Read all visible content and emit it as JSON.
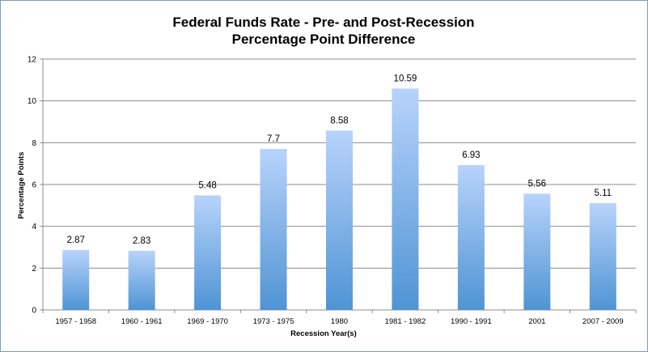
{
  "chart_data": {
    "type": "bar",
    "title": "Federal Funds Rate - Pre- and Post-Recession",
    "subtitle": "Percentage Point Difference",
    "xlabel": "Recession Year(s)",
    "ylabel": "Percentage Points",
    "categories": [
      "1957 - 1958",
      "1960 - 1961",
      "1969 - 1970",
      "1973 - 1975",
      "1980",
      "1981 - 1982",
      "1990 - 1991",
      "2001",
      "2007 - 2009"
    ],
    "values": [
      2.87,
      2.83,
      5.48,
      7.7,
      8.58,
      10.59,
      6.93,
      5.56,
      5.11
    ],
    "data_labels": [
      "2.87",
      "2.83",
      "5.48",
      "7.7",
      "8.58",
      "10.59",
      "6.93",
      "5.56",
      "5.11"
    ],
    "ylim": [
      0,
      12
    ],
    "yticks": [
      0,
      2,
      4,
      6,
      8,
      10,
      12
    ],
    "grid": true,
    "legend": "none",
    "colors": {
      "bar_top": "#b8d3fb",
      "bar_bottom": "#4f94d4",
      "gridline": "#8c8c8c",
      "axis": "#8c8c8c",
      "frame": "#7f9db9"
    }
  }
}
